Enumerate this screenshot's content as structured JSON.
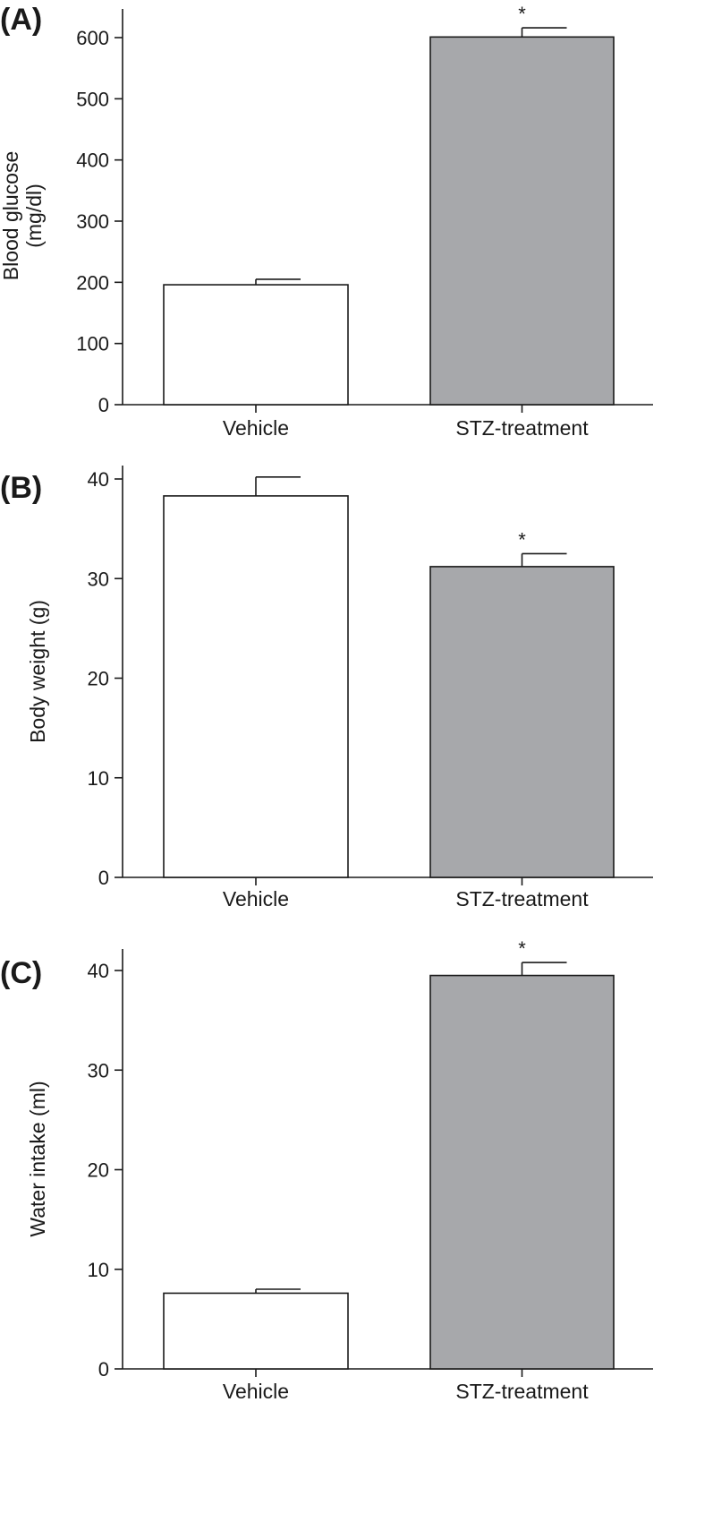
{
  "chart_data": [
    {
      "type": "bar",
      "panel_label": "(A)",
      "categories": [
        "Vehicle",
        "STZ-treatment"
      ],
      "values": [
        196,
        601
      ],
      "errors": [
        9,
        15
      ],
      "significance": [
        "",
        "*"
      ],
      "bar_colors": [
        "#ffffff",
        "#a7a8ab"
      ],
      "ylabel_lines": [
        "Blood glucose",
        "(mg/dl)"
      ],
      "ylim": [
        0,
        650
      ],
      "yticks": [
        0,
        100,
        200,
        300,
        400,
        500,
        600
      ],
      "grid": false
    },
    {
      "type": "bar",
      "panel_label": "(B)",
      "categories": [
        "Vehicle",
        "STZ-treatment"
      ],
      "values": [
        38.3,
        31.2
      ],
      "errors": [
        1.9,
        1.3
      ],
      "significance": [
        "",
        "*"
      ],
      "bar_colors": [
        "#ffffff",
        "#a7a8ab"
      ],
      "ylabel_lines": [
        "Body weight (g)"
      ],
      "ylim": [
        0,
        40
      ],
      "yticks": [
        0,
        10,
        20,
        30,
        40
      ],
      "grid": false
    },
    {
      "type": "bar",
      "panel_label": "(C)",
      "categories": [
        "Vehicle",
        "STZ-treatment"
      ],
      "values": [
        7.6,
        39.5
      ],
      "errors": [
        0.4,
        1.3
      ],
      "significance": [
        "",
        "*"
      ],
      "bar_colors": [
        "#ffffff",
        "#a7a8ab"
      ],
      "ylabel_lines": [
        "Water intake (ml)"
      ],
      "ylim": [
        0,
        42
      ],
      "yticks": [
        0,
        10,
        20,
        30,
        40
      ],
      "grid": false
    }
  ]
}
